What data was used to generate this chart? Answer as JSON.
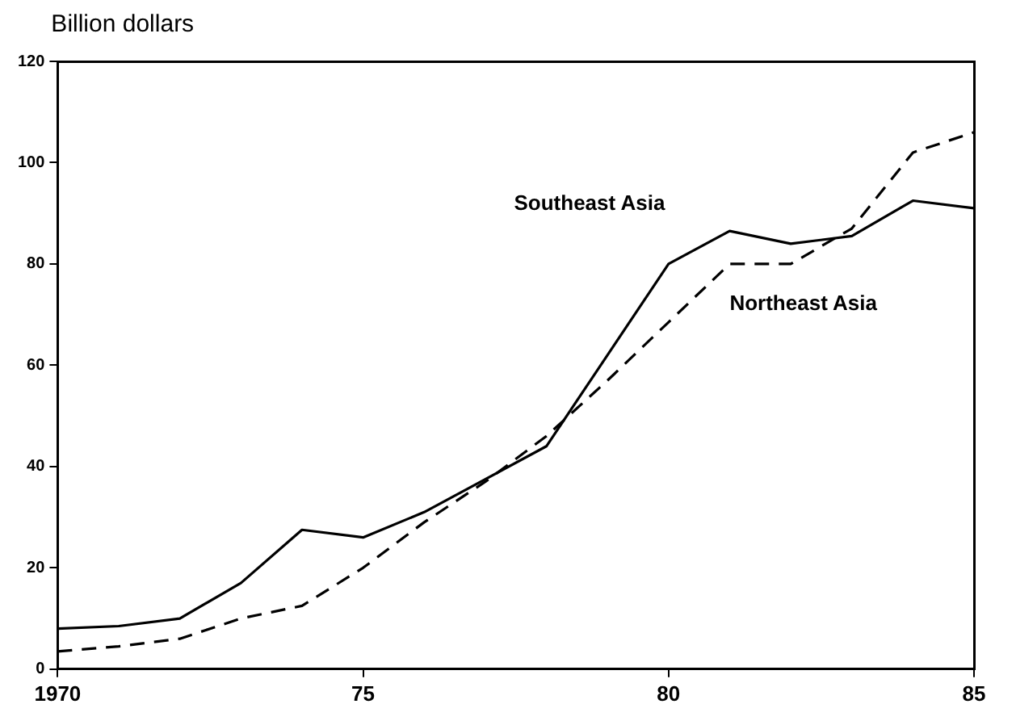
{
  "chart_data": {
    "type": "line",
    "ylabel": "Billion dollars",
    "x": [
      1970,
      1971,
      1972,
      1973,
      1974,
      1975,
      1976,
      1977,
      1978,
      1979,
      1980,
      1981,
      1982,
      1983,
      1984,
      1985
    ],
    "series": [
      {
        "name": "Southeast Asia",
        "color": "#000000",
        "line_style": "solid",
        "values": [
          8,
          8.5,
          10,
          17,
          27.5,
          26,
          31,
          37.5,
          44,
          62,
          80,
          86.5,
          84,
          85.5,
          92.5,
          91
        ]
      },
      {
        "name": "Northeast Asia",
        "color": "#000000",
        "line_style": "dashed",
        "values": [
          3.5,
          4.5,
          6,
          10,
          12.5,
          20,
          29,
          37,
          46,
          57,
          68.5,
          80,
          80,
          87,
          102,
          106
        ]
      }
    ],
    "xlim": [
      1970,
      1985
    ],
    "xticks": [
      1970,
      {
        "value": 1975,
        "label": "75"
      },
      {
        "value": 1980,
        "label": "80"
      },
      {
        "value": 1985,
        "label": "85"
      }
    ],
    "ylim": [
      0,
      120
    ],
    "yticks": [
      0,
      20,
      40,
      60,
      80,
      100,
      120
    ],
    "grid": false,
    "legend": false,
    "marker": "none"
  }
}
